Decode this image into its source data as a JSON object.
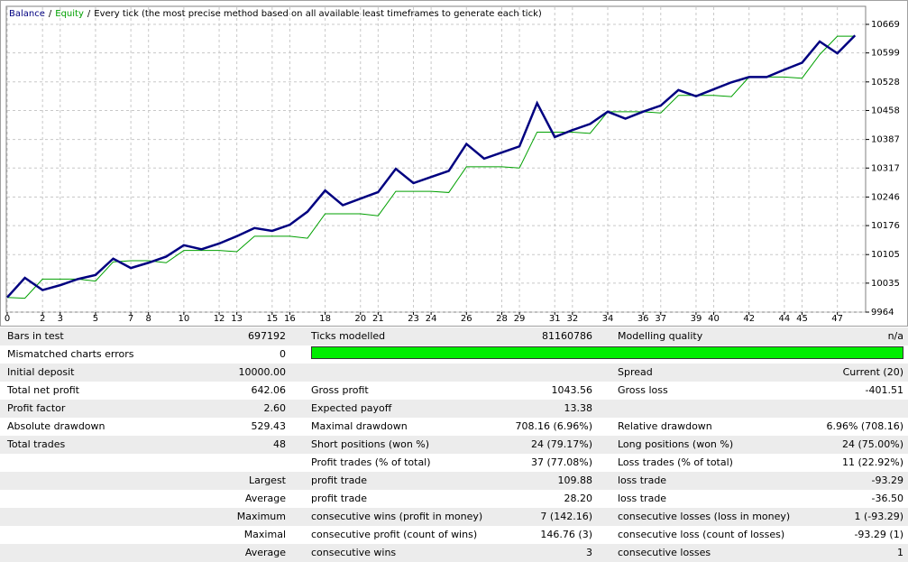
{
  "chart_data": {
    "type": "line",
    "separator": "/",
    "title": "Every tick (the most precise method based on all available least timeframes to generate each tick)",
    "x": [
      0,
      1,
      2,
      3,
      4,
      5,
      6,
      7,
      8,
      9,
      10,
      11,
      12,
      13,
      14,
      15,
      16,
      17,
      18,
      19,
      20,
      21,
      22,
      23,
      24,
      25,
      26,
      27,
      28,
      29,
      30,
      31,
      32,
      33,
      34,
      35,
      36,
      37,
      38,
      39,
      40,
      41,
      42,
      43,
      44,
      45,
      46,
      47,
      48
    ],
    "series": [
      {
        "name": "Balance",
        "color": "#000080",
        "values": [
          10000,
          10048,
          10018,
          10030,
          10045,
          10055,
          10095,
          10072,
          10085,
          10100,
          10128,
          10118,
          10132,
          10150,
          10170,
          10163,
          10178,
          10210,
          10262,
          10226,
          10242,
          10258,
          10315,
          10280,
          10295,
          10310,
          10376,
          10340,
          10355,
          10370,
          10476,
          10393,
          10410,
          10425,
          10455,
          10438,
          10455,
          10470,
          10508,
          10493,
          10510,
          10527,
          10540,
          10540,
          10558,
          10575,
          10627,
          10598,
          10642
        ]
      },
      {
        "name": "Equity",
        "color": "#00a000",
        "values": [
          10000,
          9998,
          10045,
          10045,
          10045,
          10040,
          10087,
          10090,
          10090,
          10085,
          10115,
          10115,
          10115,
          10112,
          10150,
          10150,
          10150,
          10145,
          10205,
          10205,
          10205,
          10200,
          10260,
          10260,
          10260,
          10257,
          10320,
          10320,
          10320,
          10317,
          10405,
          10405,
          10405,
          10402,
          10455,
          10455,
          10455,
          10452,
          10495,
          10495,
          10495,
          10492,
          10540,
          10540,
          10540,
          10537,
          10595,
          10640,
          10640
        ]
      }
    ],
    "xlim": [
      0,
      48.6
    ],
    "xticks": [
      0,
      2,
      3,
      5,
      7,
      8,
      10,
      12,
      13,
      15,
      16,
      18,
      20,
      21,
      23,
      24,
      26,
      28,
      29,
      31,
      32,
      34,
      36,
      37,
      39,
      40,
      42,
      44,
      45,
      47
    ],
    "ylim": [
      9964,
      10711
    ],
    "yticks": [
      9964,
      10035,
      10105,
      10176,
      10246,
      10317,
      10387,
      10458,
      10528,
      10599,
      10669
    ],
    "grid": true
  },
  "table": {
    "rows": [
      [
        "Bars in test",
        "697192",
        "Ticks modelled",
        "81160786",
        "Modelling quality",
        "n/a"
      ],
      [
        "Mismatched charts errors",
        "0",
        null,
        null,
        null,
        null
      ],
      [
        "Initial deposit",
        "10000.00",
        null,
        null,
        "Spread",
        "Current (20)"
      ],
      [
        "Total net profit",
        "642.06",
        "Gross profit",
        "1043.56",
        "Gross loss",
        "-401.51"
      ],
      [
        "Profit factor",
        "2.60",
        "Expected payoff",
        "13.38",
        null,
        null
      ],
      [
        "Absolute drawdown",
        "529.43",
        "Maximal drawdown",
        "708.16 (6.96%)",
        "Relative drawdown",
        "6.96% (708.16)"
      ],
      [
        "Total trades",
        "48",
        "Short positions (won %)",
        "24 (79.17%)",
        "Long positions (won %)",
        "24 (75.00%)"
      ],
      [
        null,
        null,
        "Profit trades (% of total)",
        "37 (77.08%)",
        "Loss trades (% of total)",
        "11 (22.92%)"
      ],
      [
        null,
        "Largest",
        "profit trade",
        "109.88",
        "loss trade",
        "-93.29"
      ],
      [
        null,
        "Average",
        "profit trade",
        "28.20",
        "loss trade",
        "-36.50"
      ],
      [
        null,
        "Maximum",
        "consecutive wins (profit in money)",
        "7 (142.16)",
        "consecutive losses (loss in money)",
        "1 (-93.29)"
      ],
      [
        null,
        "Maximal",
        "consecutive profit (count of wins)",
        "146.76 (3)",
        "consecutive loss (count of losses)",
        "-93.29 (1)"
      ],
      [
        null,
        "Average",
        "consecutive wins",
        "3",
        "consecutive losses",
        "1"
      ]
    ]
  }
}
